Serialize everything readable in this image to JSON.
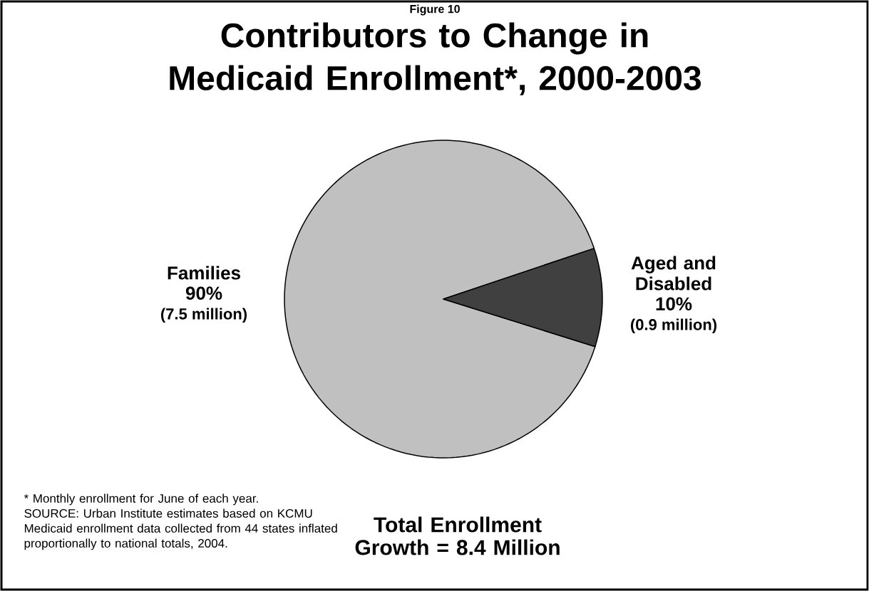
{
  "chart_data": {
    "type": "pie",
    "subtitle": "Figure 10",
    "title": "Contributors to Change in Medicaid Enrollment*, 2000-2003",
    "categories": [
      "Families",
      "Aged and Disabled"
    ],
    "values": [
      90,
      10
    ],
    "value_labels": [
      "90%",
      "10%"
    ],
    "colors": [
      "#c0c0c0",
      "#404040"
    ],
    "annotations": [
      "(7.5 million)",
      "(0.9 million)",
      "Total Enrollment Growth = 8.4 Million",
      "* Monthly enrollment for June of each year.",
      "SOURCE: Urban Institute estimates based on KCMU Medicaid enrollment data collected from 44 states inflated proportionally to national totals, 2004."
    ]
  }
}
